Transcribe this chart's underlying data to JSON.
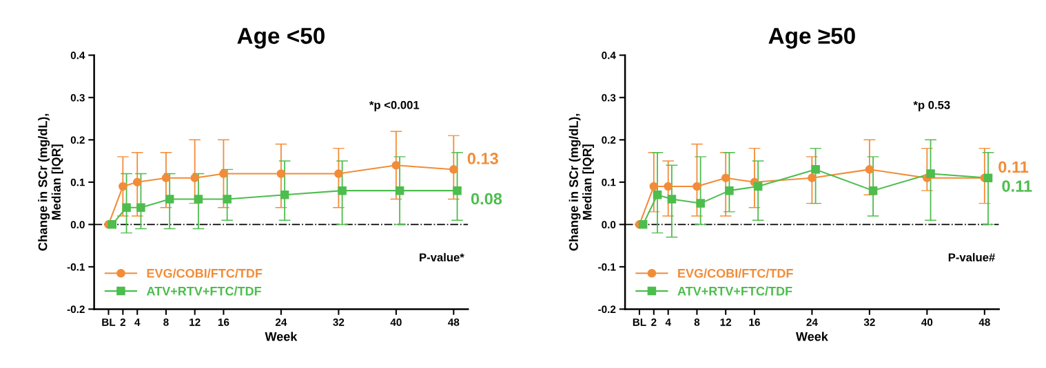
{
  "chart_data": [
    {
      "type": "line",
      "title": "Age <50",
      "xlabel": "Week",
      "ylabel": "Change in SCr (mg/dL),\nMedian [IQR]",
      "xlim": [
        -2,
        50
      ],
      "xticks": [
        {
          "value": 0,
          "label": "BL"
        },
        2,
        4,
        8,
        12,
        16,
        24,
        32,
        40,
        48
      ],
      "ylim": [
        -0.2,
        0.4
      ],
      "yticks": [
        -0.2,
        -0.1,
        {
          "value": 0,
          "label": "0.0"
        },
        0.1,
        0.2,
        0.3,
        0.4
      ],
      "legend": "bottom left",
      "grid": false,
      "annotations": [
        "*p <0.001",
        "P-value*"
      ],
      "ref_lines": [
        {
          "axis": "y",
          "value": 0,
          "color": "#000000",
          "line_style": "dashdot"
        }
      ],
      "series": [
        {
          "name": "EVG/COBI/FTC/TDF",
          "color": "#f28c38",
          "marker": "circle",
          "x": [
            0,
            2,
            4,
            8,
            12,
            16,
            24,
            32,
            40,
            48
          ],
          "values": [
            0,
            0.09,
            0.1,
            0.11,
            0.11,
            0.12,
            0.12,
            0.12,
            0.14,
            0.13
          ],
          "errors": [
            null,
            [
              0.02,
              0.16
            ],
            [
              0.02,
              0.17
            ],
            [
              0.04,
              0.17
            ],
            [
              0.05,
              0.2
            ],
            [
              0.04,
              0.2
            ],
            [
              0.04,
              0.19
            ],
            [
              0.04,
              0.18
            ],
            [
              0.06,
              0.22
            ],
            [
              0.06,
              0.21
            ]
          ],
          "value_labels": [
            null,
            null,
            null,
            null,
            null,
            null,
            null,
            null,
            null,
            "0.13"
          ]
        },
        {
          "name": "ATV+RTV+FTC/TDF",
          "color": "#4dbd4d",
          "marker": "square",
          "x": [
            0.5,
            2.5,
            4.5,
            8.5,
            12.5,
            16.5,
            24.5,
            32.5,
            40.5,
            48.5
          ],
          "values": [
            0,
            0.04,
            0.04,
            0.06,
            0.06,
            0.06,
            0.07,
            0.08,
            0.08,
            0.08
          ],
          "errors": [
            null,
            [
              -0.02,
              0.12
            ],
            [
              -0.01,
              0.12
            ],
            [
              -0.01,
              0.12
            ],
            [
              -0.01,
              0.12
            ],
            [
              0.01,
              0.13
            ],
            [
              0.01,
              0.15
            ],
            [
              0.0,
              0.15
            ],
            [
              0.0,
              0.16
            ],
            [
              0.01,
              0.17
            ]
          ],
          "value_labels": [
            null,
            null,
            null,
            null,
            null,
            null,
            null,
            null,
            null,
            "0.08"
          ]
        }
      ]
    },
    {
      "type": "line",
      "title": "Age ≥50",
      "xlabel": "Week",
      "ylabel": "Change in SCr (mg/dL),\nMedian [IQR]",
      "xlim": [
        -2,
        50
      ],
      "xticks": [
        {
          "value": 0,
          "label": "BL"
        },
        2,
        4,
        8,
        12,
        16,
        24,
        32,
        40,
        48
      ],
      "ylim": [
        -0.2,
        0.4
      ],
      "yticks": [
        -0.2,
        -0.1,
        {
          "value": 0,
          "label": "0.0"
        },
        0.1,
        0.2,
        0.3,
        0.4
      ],
      "legend": "bottom left",
      "grid": false,
      "annotations": [
        "*p 0.53",
        "P-value#"
      ],
      "ref_lines": [
        {
          "axis": "y",
          "value": 0,
          "color": "#000000",
          "line_style": "dashdot"
        }
      ],
      "series": [
        {
          "name": "EVG/COBI/FTC/TDF",
          "color": "#f28c38",
          "marker": "circle",
          "x": [
            0,
            2,
            4,
            8,
            12,
            16,
            24,
            32,
            40,
            48
          ],
          "values": [
            0,
            0.09,
            0.09,
            0.09,
            0.11,
            0.1,
            0.11,
            0.13,
            0.11,
            0.11
          ],
          "errors": [
            null,
            [
              0.03,
              0.17
            ],
            [
              0.02,
              0.15
            ],
            [
              0.02,
              0.19
            ],
            [
              0.02,
              0.17
            ],
            [
              0.04,
              0.18
            ],
            [
              0.05,
              0.16
            ],
            [
              0.07,
              0.2
            ],
            [
              0.08,
              0.18
            ],
            [
              0.05,
              0.18
            ]
          ],
          "value_labels": [
            null,
            null,
            null,
            null,
            null,
            null,
            null,
            null,
            null,
            "0.11"
          ]
        },
        {
          "name": "ATV+RTV+FTC/TDF",
          "color": "#4dbd4d",
          "marker": "square",
          "x": [
            0.5,
            2.5,
            4.5,
            8.5,
            12.5,
            16.5,
            24.5,
            32.5,
            40.5,
            48.5
          ],
          "values": [
            0,
            0.07,
            0.06,
            0.05,
            0.08,
            0.09,
            0.13,
            0.08,
            0.12,
            0.11
          ],
          "errors": [
            null,
            [
              -0.02,
              0.17
            ],
            [
              -0.03,
              0.14
            ],
            [
              0.0,
              0.16
            ],
            [
              0.03,
              0.17
            ],
            [
              0.01,
              0.15
            ],
            [
              0.05,
              0.18
            ],
            [
              0.02,
              0.16
            ],
            [
              0.01,
              0.2
            ],
            [
              0.0,
              0.17
            ]
          ],
          "value_labels": [
            null,
            null,
            null,
            null,
            null,
            null,
            null,
            null,
            null,
            "0.11"
          ]
        }
      ]
    }
  ]
}
